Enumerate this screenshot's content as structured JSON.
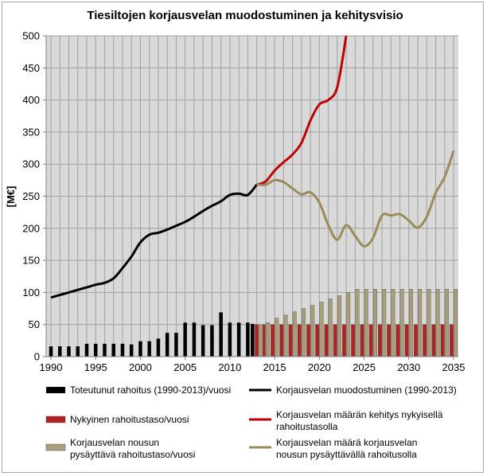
{
  "chart_data": {
    "type": "bar",
    "title": "Tiesiltojen korjausvelan muodostuminen ja kehitysvisio",
    "xlabel": "",
    "ylabel": "[M€]",
    "xlim": [
      1990,
      2035
    ],
    "ylim": [
      0,
      500
    ],
    "x_ticks": [
      1990,
      1995,
      2000,
      2005,
      2010,
      2015,
      2020,
      2025,
      2030,
      2035
    ],
    "y_ticks": [
      0,
      50,
      100,
      150,
      200,
      250,
      300,
      350,
      400,
      450,
      500
    ],
    "grid": true,
    "legend_position": "bottom",
    "series": [
      {
        "name": "Toteutunut rahoitus (1990-2013)/vuosi",
        "kind": "bar",
        "color": "#000000",
        "x": [
          1990,
          1991,
          1992,
          1993,
          1994,
          1995,
          1996,
          1997,
          1998,
          1999,
          2000,
          2001,
          2002,
          2003,
          2004,
          2005,
          2006,
          2007,
          2008,
          2009,
          2010,
          2011,
          2012,
          2013
        ],
        "values": [
          16,
          16,
          16,
          16,
          20,
          20,
          20,
          20,
          20,
          19,
          24,
          24,
          28,
          37,
          37,
          53,
          53,
          49,
          49,
          69,
          53,
          53,
          53,
          51
        ]
      },
      {
        "name": "Korjausvelan muodostuminen (1990-2013)",
        "kind": "line",
        "color": "#000000",
        "x": [
          1990,
          1991,
          1992,
          1993,
          1994,
          1995,
          1996,
          1997,
          1998,
          1999,
          2000,
          2001,
          2002,
          2003,
          2004,
          2005,
          2006,
          2007,
          2008,
          2009,
          2010,
          2011,
          2012,
          2013
        ],
        "values": [
          92,
          96,
          100,
          104,
          108,
          112,
          115,
          122,
          138,
          156,
          178,
          190,
          193,
          198,
          204,
          210,
          218,
          227,
          235,
          242,
          252,
          254,
          252,
          268
        ]
      },
      {
        "name": "Nykyinen rahoitustaso/vuosi",
        "kind": "bar",
        "color": "#b22222",
        "x": [
          2013,
          2014,
          2015,
          2016,
          2017,
          2018,
          2019,
          2020,
          2021,
          2022,
          2023,
          2024,
          2025,
          2026,
          2027,
          2028,
          2029,
          2030,
          2031,
          2032,
          2033,
          2034,
          2035
        ],
        "values": [
          50,
          50,
          50,
          50,
          50,
          50,
          50,
          50,
          50,
          50,
          50,
          50,
          50,
          50,
          50,
          50,
          50,
          50,
          50,
          50,
          50,
          50,
          50
        ]
      },
      {
        "name": "Korjausvelan määrän kehitys nykyisellä rahoitustasolla",
        "kind": "line",
        "color": "#c00000",
        "x": [
          2013,
          2014,
          2015,
          2016,
          2017,
          2018,
          2019,
          2020,
          2021,
          2022,
          2023
        ],
        "values": [
          268,
          273,
          290,
          303,
          315,
          333,
          368,
          393,
          400,
          420,
          500
        ]
      },
      {
        "name": "Korjausvelan nousun pysäyttävä rahoitustaso/vuosi",
        "kind": "bar",
        "color": "#a99e79",
        "x": [
          2013,
          2014,
          2015,
          2016,
          2017,
          2018,
          2019,
          2020,
          2021,
          2022,
          2023,
          2024,
          2025,
          2026,
          2027,
          2028,
          2029,
          2030,
          2031,
          2032,
          2033,
          2034,
          2035
        ],
        "values": [
          50,
          53,
          60,
          65,
          70,
          75,
          80,
          85,
          90,
          95,
          100,
          105,
          105,
          105,
          105,
          105,
          105,
          105,
          105,
          105,
          105,
          105,
          105
        ]
      },
      {
        "name": "Korjausvelan määrä korjausvelan nousun pysäyttävällä rahoitusolla",
        "kind": "line",
        "color": "#9b8b5a",
        "x": [
          2013,
          2014,
          2015,
          2016,
          2017,
          2018,
          2019,
          2020,
          2021,
          2022,
          2023,
          2024,
          2025,
          2026,
          2027,
          2028,
          2029,
          2030,
          2031,
          2032,
          2033,
          2034,
          2035
        ],
        "values": [
          268,
          268,
          275,
          272,
          262,
          253,
          256,
          240,
          205,
          182,
          205,
          188,
          172,
          185,
          220,
          220,
          222,
          212,
          201,
          218,
          255,
          280,
          321
        ]
      }
    ]
  },
  "legend": [
    [
      "Toteutunut rahoitus (1990-2013)/vuosi"
    ],
    [
      "Korjausvelan muodostuminen (1990-2013)"
    ],
    [
      "Nykyinen rahoitustaso/vuosi"
    ],
    [
      "Korjausvelan määrän kehitys nykyisellä",
      "rahoitustasolla"
    ],
    [
      "Korjausvelan nousun",
      "pysäyttävä rahoitustaso/vuosi"
    ],
    [
      "Korjausvelan määrä  korjausvelan",
      "nousun pysäyttävällä rahoitusolla"
    ]
  ]
}
